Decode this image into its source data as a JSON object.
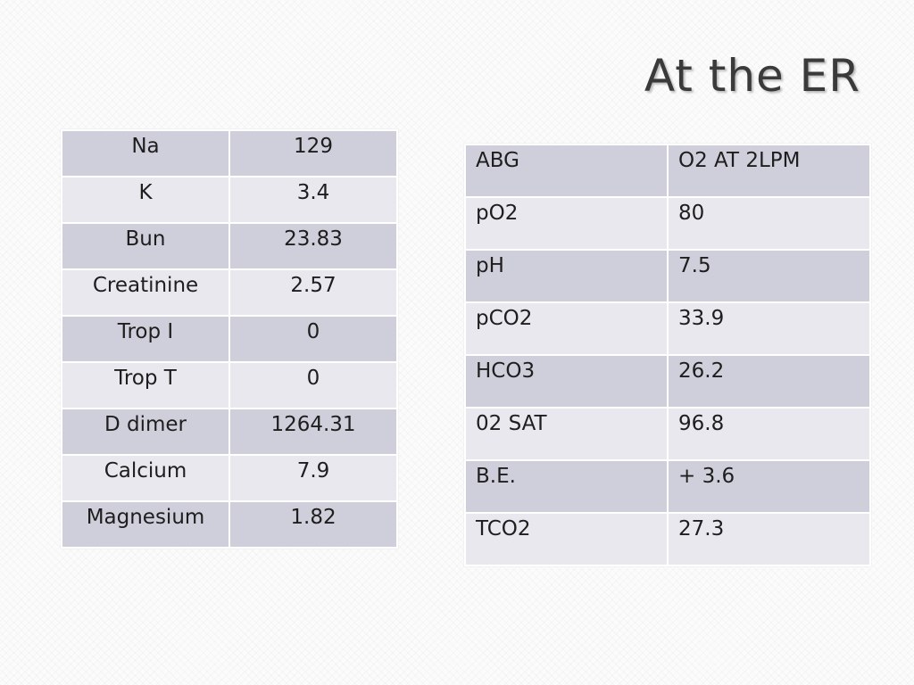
{
  "slide": {
    "title": "At the ER"
  },
  "labs_table": {
    "rows": [
      {
        "name": "Na",
        "value": "129"
      },
      {
        "name": "K",
        "value": "3.4"
      },
      {
        "name": "Bun",
        "value": "23.83"
      },
      {
        "name": "Creatinine",
        "value": "2.57"
      },
      {
        "name": "Trop I",
        "value": "0"
      },
      {
        "name": "Trop T",
        "value": "0"
      },
      {
        "name": "D dimer",
        "value": "1264.31"
      },
      {
        "name": "Calcium",
        "value": "7.9"
      },
      {
        "name": "Magnesium",
        "value": "1.82"
      }
    ]
  },
  "abg_table": {
    "rows": [
      {
        "name": "ABG",
        "value": "O2 AT 2LPM"
      },
      {
        "name": "pO2",
        "value": "80"
      },
      {
        "name": "pH",
        "value": "7.5"
      },
      {
        "name": "pCO2",
        "value": "33.9"
      },
      {
        "name": "HCO3",
        "value": "26.2"
      },
      {
        "name": "02 SAT",
        "value": "96.8"
      },
      {
        "name": "B.E.",
        "value": "+ 3.6"
      },
      {
        "name": "TCO2",
        "value": "27.3"
      }
    ]
  },
  "colors": {
    "row_dark": "#cfcfdb",
    "row_light": "#e8e8ee",
    "title": "#3a3a3a"
  }
}
